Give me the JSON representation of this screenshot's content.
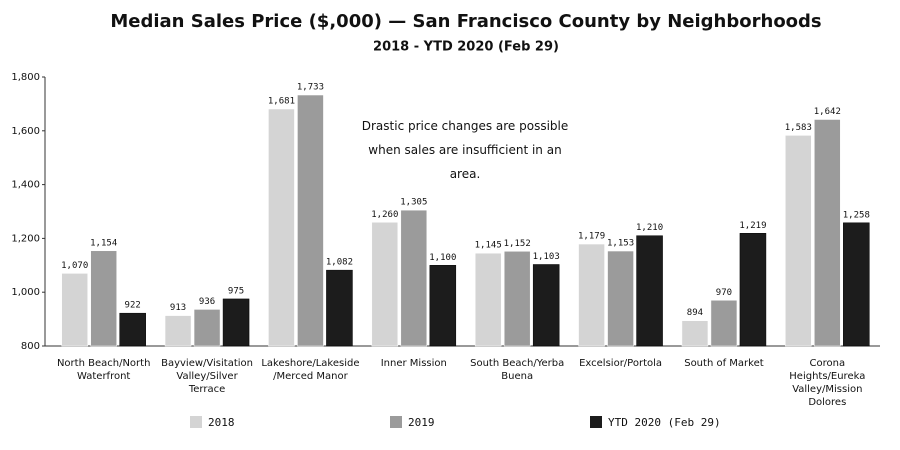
{
  "chart_data": {
    "type": "bar",
    "title": "Median Sales Price ($,000) — San Francisco County by Neighborhoods",
    "subtitle": "2018 - YTD 2020 (Feb 29)",
    "annotation": "Drastic price changes are possible when sales are insufficient in an area.",
    "categories": [
      "North Beach/North Waterfront",
      "Bayview/Visitation Valley/Silver Terrace",
      "Lakeshore/Lakeside /Merced Manor",
      "Inner Mission",
      "South Beach/Yerba Buena",
      "Excelsior/Portola",
      "South of Market",
      "Corona Heights/Eureka Valley/Mission Dolores"
    ],
    "series": [
      {
        "name": "2018",
        "color": "#d4d4d4",
        "values": [
          1070,
          913,
          1681,
          1260,
          1145,
          1179,
          894,
          1583
        ],
        "value_labels": [
          "1,070",
          "913",
          "1,681",
          "1,260",
          "1,145",
          "1,179",
          "894",
          "1,583"
        ]
      },
      {
        "name": "2019",
        "color": "#9b9b9b",
        "values": [
          1154,
          936,
          1733,
          1305,
          1152,
          1153,
          970,
          1642
        ],
        "value_labels": [
          "1,154",
          "936",
          "1,733",
          "1,305",
          "1,152",
          "1,153",
          "970",
          "1,642"
        ]
      },
      {
        "name": "YTD 2020 (Feb 29)",
        "color": "#1c1c1c",
        "values": [
          922,
          975,
          1082,
          1100,
          1103,
          1210,
          1219,
          1258
        ],
        "value_labels": [
          "922",
          "975",
          "1,082",
          "1,100",
          "1,103",
          "1,210",
          "1,219",
          "1,258"
        ]
      }
    ],
    "ylim": [
      800,
      1800
    ],
    "yticks": [
      800,
      {
        "value": 1000,
        "label": "1,000"
      },
      {
        "value": 1200,
        "label": "1,200"
      },
      {
        "value": 1400,
        "label": "1,400"
      },
      {
        "value": 1600,
        "label": "1,600"
      },
      {
        "value": 1800,
        "label": "1,800"
      }
    ],
    "grid": false,
    "legend": "bottom"
  }
}
